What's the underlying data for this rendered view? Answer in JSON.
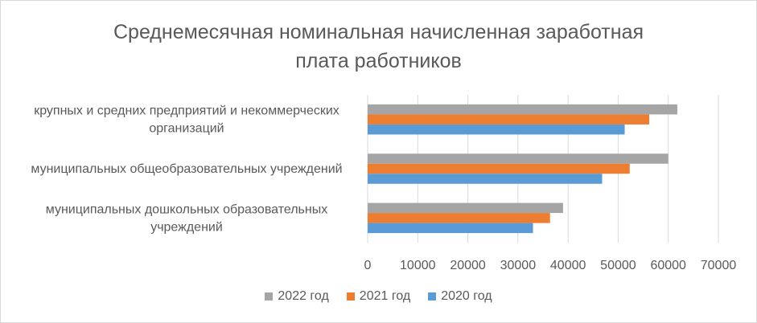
{
  "chart_data": {
    "type": "bar",
    "orientation": "horizontal",
    "title_lines": [
      "Среднемесячная номинальная начисленная заработная",
      "плата работников"
    ],
    "categories": [
      [
        "крупных и средних предприятий и некоммерческих",
        "организаций"
      ],
      [
        "муниципальных общеобразовательных учреждений"
      ],
      [
        "муниципальных дошкольных образовательных",
        "учреждений"
      ]
    ],
    "series": [
      {
        "name": "2022 год",
        "color": "#a5a5a5",
        "values": [
          61800,
          60000,
          39000
        ]
      },
      {
        "name": "2021 год",
        "color": "#ed7d31",
        "values": [
          56200,
          52300,
          36400
        ]
      },
      {
        "name": "2020 год",
        "color": "#5b9bd5",
        "values": [
          51300,
          46800,
          33000
        ]
      }
    ],
    "xlim": [
      0,
      70000
    ],
    "xticks": [
      0,
      10000,
      20000,
      30000,
      40000,
      50000,
      60000,
      70000
    ],
    "grid": "vertical",
    "legend_position": "bottom"
  }
}
